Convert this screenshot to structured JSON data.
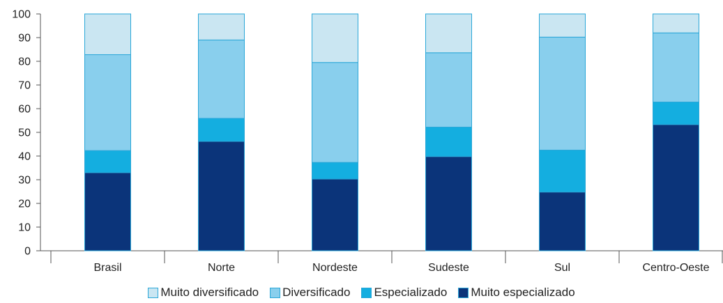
{
  "chart_data": {
    "type": "bar",
    "stacked": true,
    "categories": [
      "Brasil",
      "Norte",
      "Nordeste",
      "Sudeste",
      "Sul",
      "Centro-Oeste"
    ],
    "series": [
      {
        "name": "Muito especializado",
        "color": "#0b347a",
        "values": [
          33,
          46.2,
          30.3,
          39.8,
          24.8,
          53.3
        ]
      },
      {
        "name": "Especializado",
        "color": "#14aee0",
        "values": [
          9.3,
          9.7,
          7,
          12.4,
          17.7,
          9.5
        ]
      },
      {
        "name": "Diversificado",
        "color": "#89cfed",
        "values": [
          40.5,
          33.1,
          42.2,
          31.4,
          47.7,
          29.2
        ]
      },
      {
        "name": "Muito diversificado",
        "color": "#cae6f2",
        "values": [
          17.2,
          11,
          20.5,
          16.4,
          9.8,
          8
        ]
      }
    ],
    "legend_order": [
      "Muito diversificado",
      "Diversificado",
      "Especializado",
      "Muito especializado"
    ],
    "ylim": [
      0,
      100
    ],
    "yticks": [
      0,
      10,
      20,
      30,
      40,
      50,
      60,
      70,
      80,
      90,
      100
    ],
    "grid": false,
    "legend_position": "bottom",
    "title": "",
    "xlabel": "",
    "ylabel": ""
  }
}
